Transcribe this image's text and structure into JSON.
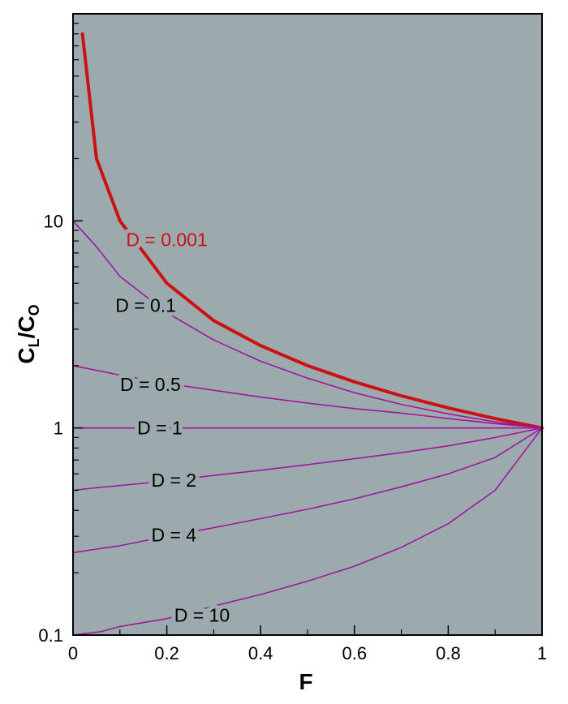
{
  "chart_data": {
    "type": "line",
    "title": "",
    "xlabel": "F",
    "ylabel": {
      "main": "C",
      "sub1": "L",
      "slash": "/C",
      "sub2": "O"
    },
    "xlim": [
      0,
      1
    ],
    "ylim": [
      0.1,
      100
    ],
    "yscale": "log",
    "grid": false,
    "legend": "none",
    "background_color": "#9caaae",
    "x_ticks": [
      0,
      0.2,
      0.4,
      0.6,
      0.8,
      1
    ],
    "x_tick_labels": [
      "0",
      "0.2",
      "0.4",
      "0.6",
      "0.8",
      "1"
    ],
    "y_ticks": [
      0.1,
      1,
      10
    ],
    "y_tick_labels": [
      "0.1",
      "1",
      "10"
    ],
    "series": [
      {
        "name": "D = 0.001",
        "color": "#cc1111",
        "width": 4,
        "label_at": [
          0.2,
          8.1
        ],
        "x": [
          0.02,
          0.05,
          0.1,
          0.2,
          0.3,
          0.4,
          0.5,
          0.6,
          0.7,
          0.8,
          0.9,
          1.0
        ],
        "y": [
          80,
          20,
          10,
          5,
          3.3,
          2.5,
          2,
          1.67,
          1.43,
          1.25,
          1.11,
          1
        ]
      },
      {
        "name": "D = 0.1",
        "color": "#a0179e",
        "width": 1.6,
        "label_at": [
          0.155,
          3.9
        ],
        "x": [
          0,
          0.05,
          0.1,
          0.2,
          0.3,
          0.4,
          0.5,
          0.6,
          0.7,
          0.8,
          0.9,
          1.0
        ],
        "y": [
          10,
          7.5,
          5.4,
          3.6,
          2.66,
          2.1,
          1.74,
          1.48,
          1.3,
          1.17,
          1.07,
          1
        ]
      },
      {
        "name": "D = 0.5",
        "color": "#a0179e",
        "width": 1.6,
        "label_at": [
          0.165,
          1.62
        ],
        "x": [
          0,
          0.1,
          0.2,
          0.3,
          0.4,
          0.5,
          0.6,
          0.7,
          0.8,
          0.9,
          1.0
        ],
        "y": [
          2.0,
          1.8,
          1.64,
          1.52,
          1.41,
          1.32,
          1.24,
          1.18,
          1.11,
          1.05,
          1
        ]
      },
      {
        "name": "D = 1",
        "color": "#a0179e",
        "width": 1.6,
        "label_at": [
          0.185,
          1.0
        ],
        "x": [
          0,
          1
        ],
        "y": [
          1,
          1
        ]
      },
      {
        "name": "D = 2",
        "color": "#a0179e",
        "width": 1.6,
        "label_at": [
          0.215,
          0.56
        ],
        "x": [
          0,
          0.05,
          0.1,
          0.2,
          0.3,
          0.4,
          0.5,
          0.6,
          0.7,
          0.8,
          0.9,
          1.0
        ],
        "y": [
          0.5,
          0.515,
          0.527,
          0.555,
          0.59,
          0.625,
          0.665,
          0.71,
          0.76,
          0.82,
          0.9,
          1
        ]
      },
      {
        "name": "D = 4",
        "color": "#a0179e",
        "width": 1.6,
        "label_at": [
          0.215,
          0.305
        ],
        "x": [
          0,
          0.05,
          0.1,
          0.2,
          0.3,
          0.4,
          0.5,
          0.6,
          0.7,
          0.8,
          0.9,
          1.0
        ],
        "y": [
          0.25,
          0.26,
          0.27,
          0.3,
          0.33,
          0.365,
          0.405,
          0.455,
          0.52,
          0.6,
          0.72,
          1
        ]
      },
      {
        "name": "D = 10",
        "color": "#a0179e",
        "width": 1.6,
        "label_at": [
          0.275,
          0.125
        ],
        "x": [
          0,
          0.06,
          0.1,
          0.2,
          0.3,
          0.4,
          0.5,
          0.6,
          0.7,
          0.8,
          0.9,
          1.0
        ],
        "y": [
          0.1,
          0.104,
          0.11,
          0.12,
          0.138,
          0.157,
          0.182,
          0.215,
          0.265,
          0.345,
          0.5,
          1
        ]
      }
    ]
  }
}
